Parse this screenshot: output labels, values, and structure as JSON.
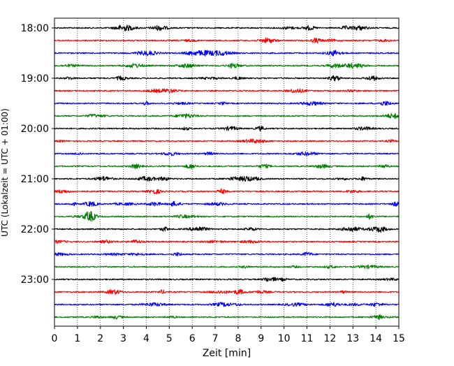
{
  "chart_data": {
    "type": "line",
    "title": "",
    "xlabel": "Zeit  [min]",
    "ylabel": "UTC (Lokalzeit = UTC + 01:00)",
    "xlim": [
      0,
      15
    ],
    "x_ticks": [
      "0",
      "1",
      "2",
      "3",
      "4",
      "5",
      "6",
      "7",
      "8",
      "9",
      "10",
      "11",
      "12",
      "13",
      "14",
      "15"
    ],
    "y_tick_labels": [
      "18:00",
      "19:00",
      "20:00",
      "21:00",
      "22:00",
      "23:00"
    ],
    "y_tick_rows": [
      0,
      4,
      8,
      12,
      16,
      20
    ],
    "grid": {
      "vertical": true,
      "style": "dotted"
    },
    "rows": [
      {
        "start": "18:00",
        "color": "#000000"
      },
      {
        "start": "18:15",
        "color": "#ff0000"
      },
      {
        "start": "18:30",
        "color": "#0000ff"
      },
      {
        "start": "18:45",
        "color": "#007f00"
      },
      {
        "start": "19:00",
        "color": "#000000"
      },
      {
        "start": "19:15",
        "color": "#ff0000"
      },
      {
        "start": "19:30",
        "color": "#0000ff"
      },
      {
        "start": "19:45",
        "color": "#007f00"
      },
      {
        "start": "20:00",
        "color": "#000000"
      },
      {
        "start": "20:15",
        "color": "#ff0000"
      },
      {
        "start": "20:30",
        "color": "#0000ff"
      },
      {
        "start": "20:45",
        "color": "#007f00"
      },
      {
        "start": "21:00",
        "color": "#000000"
      },
      {
        "start": "21:15",
        "color": "#ff0000"
      },
      {
        "start": "21:30",
        "color": "#0000ff"
      },
      {
        "start": "21:45",
        "color": "#007f00"
      },
      {
        "start": "22:00",
        "color": "#000000"
      },
      {
        "start": "22:15",
        "color": "#ff0000"
      },
      {
        "start": "22:30",
        "color": "#0000ff"
      },
      {
        "start": "22:45",
        "color": "#007f00"
      },
      {
        "start": "23:00",
        "color": "#000000"
      },
      {
        "start": "23:15",
        "color": "#ff0000"
      },
      {
        "start": "23:30",
        "color": "#0000ff"
      },
      {
        "start": "23:45",
        "color": "#007f00"
      }
    ]
  }
}
